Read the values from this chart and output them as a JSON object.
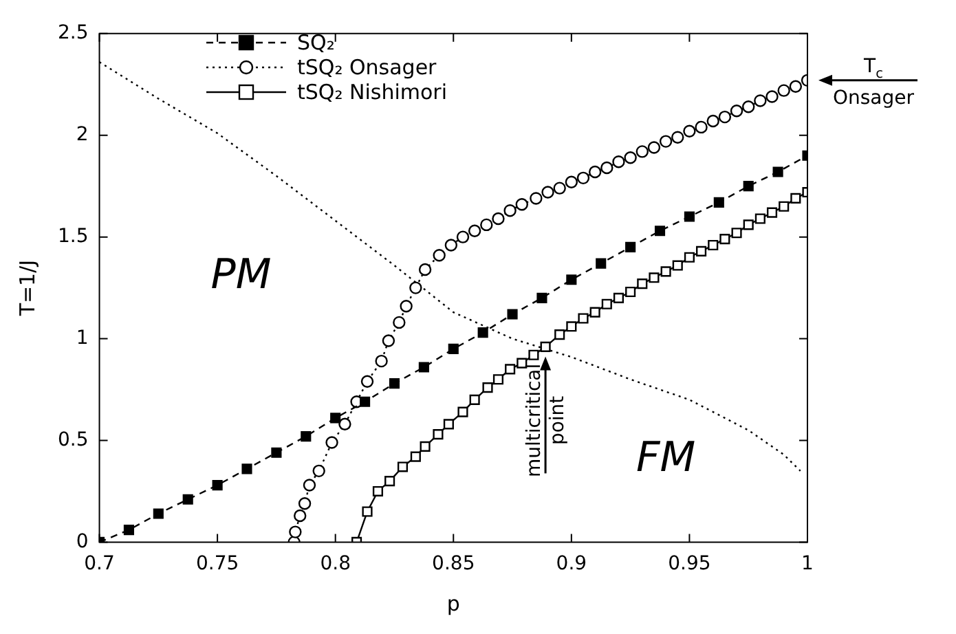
{
  "chart_data": {
    "type": "line",
    "xlabel": "p",
    "ylabel": "T=1/J",
    "xlim": [
      0.7,
      1
    ],
    "xticks": [
      0.7,
      0.75,
      0.8,
      0.85,
      0.9,
      0.95,
      1
    ],
    "ylim": [
      0,
      2.5
    ],
    "yticks": [
      0,
      0.5,
      1,
      1.5,
      2,
      2.5
    ],
    "legend": "top left",
    "series": [
      {
        "name": "SQ₂",
        "color": "#000000",
        "marker": "square",
        "line_style": "dashed",
        "x": [
          0.7,
          0.7125,
          0.725,
          0.7375,
          0.75,
          0.7625,
          0.775,
          0.7875,
          0.8,
          0.8125,
          0.825,
          0.8375,
          0.85,
          0.8625,
          0.875,
          0.8875,
          0.9,
          0.9125,
          0.925,
          0.9375,
          0.95,
          0.9625,
          0.975,
          0.9875,
          1
        ],
        "values": [
          0,
          0.06,
          0.14,
          0.21,
          0.28,
          0.36,
          0.44,
          0.52,
          0.61,
          0.69,
          0.78,
          0.86,
          0.95,
          1.03,
          1.12,
          1.2,
          1.29,
          1.37,
          1.45,
          1.53,
          1.6,
          1.67,
          1.75,
          1.82,
          1.9
        ]
      },
      {
        "name": "tSQ₂ Onsager",
        "color": "#000000",
        "marker": "circle",
        "line_style": "dotted",
        "x": [
          0.7825,
          0.783,
          0.785,
          0.787,
          0.789,
          0.793,
          0.7985,
          0.804,
          0.809,
          0.8135,
          0.8195,
          0.8225,
          0.827,
          0.83,
          0.834,
          0.838,
          0.844,
          0.849,
          0.854,
          0.859,
          0.864,
          0.869,
          0.874,
          0.879,
          0.885,
          0.89,
          0.895,
          0.9,
          0.905,
          0.91,
          0.915,
          0.92,
          0.925,
          0.93,
          0.935,
          0.94,
          0.945,
          0.95,
          0.955,
          0.96,
          0.965,
          0.97,
          0.975,
          0.98,
          0.985,
          0.99,
          0.995,
          1
        ],
        "values": [
          0,
          0.05,
          0.13,
          0.19,
          0.28,
          0.35,
          0.49,
          0.58,
          0.69,
          0.79,
          0.89,
          0.99,
          1.08,
          1.16,
          1.25,
          1.34,
          1.41,
          1.46,
          1.5,
          1.53,
          1.56,
          1.59,
          1.63,
          1.66,
          1.69,
          1.72,
          1.74,
          1.77,
          1.79,
          1.82,
          1.84,
          1.87,
          1.89,
          1.92,
          1.94,
          1.97,
          1.99,
          2.02,
          2.04,
          2.07,
          2.09,
          2.12,
          2.14,
          2.17,
          2.19,
          2.22,
          2.24,
          2.27
        ]
      },
      {
        "name": "tSQ₂ Nishimori",
        "color": "#000000",
        "marker": "square",
        "line_style": "solid",
        "x": [
          0.809,
          0.8135,
          0.818,
          0.823,
          0.8285,
          0.834,
          0.838,
          0.8435,
          0.848,
          0.854,
          0.859,
          0.8645,
          0.869,
          0.874,
          0.879,
          0.884,
          0.889,
          0.895,
          0.9,
          0.905,
          0.91,
          0.915,
          0.92,
          0.925,
          0.93,
          0.935,
          0.94,
          0.945,
          0.95,
          0.955,
          0.96,
          0.965,
          0.97,
          0.975,
          0.98,
          0.985,
          0.99,
          0.995,
          1
        ],
        "values": [
          0,
          0.15,
          0.25,
          0.3,
          0.37,
          0.42,
          0.47,
          0.53,
          0.58,
          0.64,
          0.7,
          0.76,
          0.8,
          0.85,
          0.88,
          0.92,
          0.96,
          1.02,
          1.06,
          1.1,
          1.13,
          1.17,
          1.2,
          1.23,
          1.27,
          1.3,
          1.33,
          1.36,
          1.4,
          1.43,
          1.46,
          1.49,
          1.52,
          1.56,
          1.59,
          1.62,
          1.65,
          1.69,
          1.72
        ]
      },
      {
        "color": "#000000",
        "marker": "none",
        "line_style": "dotted",
        "x": [
          0.7,
          0.725,
          0.75,
          0.775,
          0.8,
          0.825,
          0.85,
          0.875,
          0.9,
          0.925,
          0.95,
          0.975,
          0.99,
          0.997
        ],
        "values": [
          2.36,
          2.18,
          2.01,
          1.8,
          1.58,
          1.36,
          1.13,
          1.0,
          0.91,
          0.8,
          0.7,
          0.55,
          0.43,
          0.35
        ]
      }
    ],
    "annotations": [
      "PM",
      "FM",
      {
        "text": "T$_{c}$ Onsager",
        "x": 1,
        "y": 2.27
      },
      {
        "text": "multicritical point",
        "x": 0.889,
        "y": 0.96
      }
    ]
  }
}
